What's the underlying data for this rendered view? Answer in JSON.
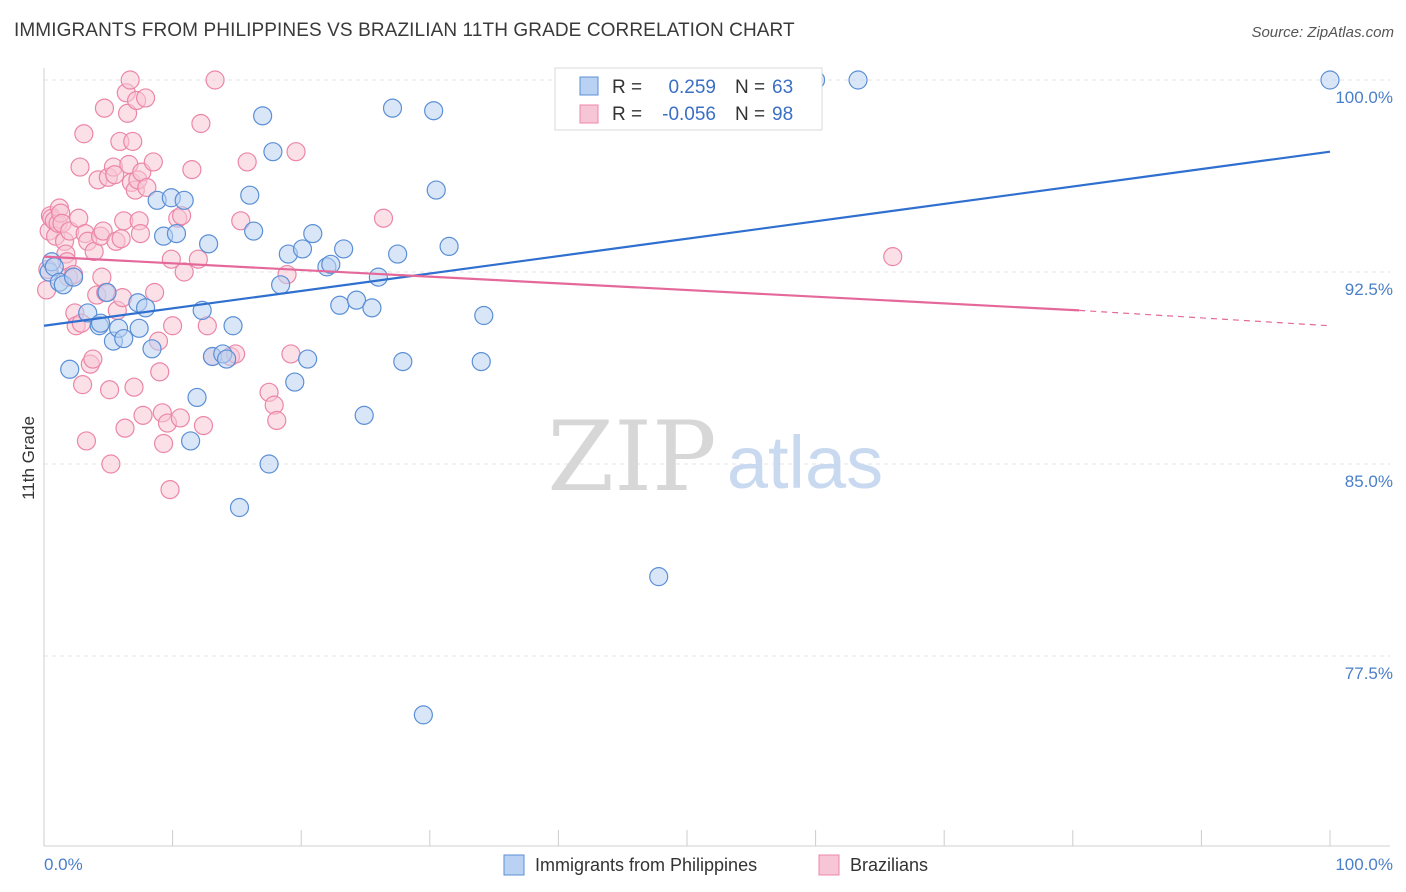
{
  "title": "IMMIGRANTS FROM PHILIPPINES VS BRAZILIAN 11TH GRADE CORRELATION CHART",
  "source": "Source: ZipAtlas.com",
  "watermark": {
    "zip": "ZIP",
    "atlas": "atlas"
  },
  "colors": {
    "blue_fill": "#b9d1f2",
    "blue_stroke": "#5b8fd6",
    "blue_line": "#2f6fcf",
    "pink_fill": "#f7c6d6",
    "pink_stroke": "#ec86a8",
    "pink_line": "#e4699a"
  },
  "legend": {
    "r_label": "R =",
    "n_label": "N =",
    "blue": {
      "r": "0.259",
      "n": "63"
    },
    "pink": {
      "r": "-0.056",
      "n": "98"
    }
  },
  "chart_data": {
    "type": "scatter",
    "xlabel": "",
    "ylabel": "11th Grade",
    "xlim": [
      0,
      100
    ],
    "ylim": [
      71.0,
      101.0
    ],
    "x_tick_labels": [
      "0.0%",
      "100.0%"
    ],
    "y_ticks": [
      77.5,
      85.0,
      92.5,
      100.0
    ],
    "y_tick_labels": [
      "77.5%",
      "85.0%",
      "92.5%",
      "100.0%"
    ],
    "series": [
      {
        "name": "Immigrants from Philippines",
        "color": "blue",
        "trend": {
          "x0": 0,
          "y0": 90.4,
          "x1": 100,
          "y1": 97.2
        },
        "points": [
          [
            0.4,
            92.5
          ],
          [
            0.6,
            92.9
          ],
          [
            0.8,
            92.7
          ],
          [
            1.2,
            92.1
          ],
          [
            1.5,
            92.0
          ],
          [
            2.3,
            92.3
          ],
          [
            2.0,
            88.7
          ],
          [
            3.4,
            90.9
          ],
          [
            4.3,
            90.4
          ],
          [
            4.4,
            90.5
          ],
          [
            4.9,
            91.7
          ],
          [
            5.4,
            89.8
          ],
          [
            5.8,
            90.3
          ],
          [
            6.2,
            89.9
          ],
          [
            7.3,
            91.3
          ],
          [
            7.4,
            90.3
          ],
          [
            7.9,
            91.1
          ],
          [
            8.4,
            89.5
          ],
          [
            8.8,
            95.3
          ],
          [
            9.3,
            93.9
          ],
          [
            9.9,
            95.4
          ],
          [
            10.3,
            94.0
          ],
          [
            10.9,
            95.3
          ],
          [
            11.4,
            85.9
          ],
          [
            11.9,
            87.6
          ],
          [
            12.3,
            91.0
          ],
          [
            12.8,
            93.6
          ],
          [
            13.1,
            89.2
          ],
          [
            13.9,
            89.3
          ],
          [
            14.2,
            89.1
          ],
          [
            14.7,
            90.4
          ],
          [
            15.2,
            83.3
          ],
          [
            16.0,
            95.5
          ],
          [
            16.3,
            94.1
          ],
          [
            17.0,
            98.6
          ],
          [
            17.5,
            85.0
          ],
          [
            17.8,
            97.2
          ],
          [
            18.4,
            92.0
          ],
          [
            19.0,
            93.2
          ],
          [
            19.5,
            88.2
          ],
          [
            20.1,
            93.4
          ],
          [
            20.5,
            89.1
          ],
          [
            20.9,
            94.0
          ],
          [
            22.0,
            92.7
          ],
          [
            22.3,
            92.8
          ],
          [
            23.0,
            91.2
          ],
          [
            23.3,
            93.4
          ],
          [
            24.3,
            91.4
          ],
          [
            24.9,
            86.9
          ],
          [
            25.5,
            91.1
          ],
          [
            26.0,
            92.3
          ],
          [
            27.1,
            98.9
          ],
          [
            27.5,
            93.2
          ],
          [
            27.9,
            89.0
          ],
          [
            30.3,
            98.8
          ],
          [
            30.5,
            95.7
          ],
          [
            31.5,
            93.5
          ],
          [
            34.0,
            89.0
          ],
          [
            34.2,
            90.8
          ],
          [
            29.5,
            75.2
          ],
          [
            47.8,
            80.6
          ],
          [
            60.0,
            100.0
          ],
          [
            63.3,
            100.0
          ],
          [
            100.0,
            100.0
          ]
        ]
      },
      {
        "name": "Brazilians",
        "color": "pink",
        "trend": {
          "x0": 0,
          "y0": 93.1,
          "x1": 80.5,
          "y1": 91.0,
          "dash_x1": 100,
          "dash_y1": 90.4
        },
        "points": [
          [
            0.2,
            91.8
          ],
          [
            0.3,
            92.6
          ],
          [
            0.4,
            94.1
          ],
          [
            0.5,
            94.7
          ],
          [
            0.6,
            94.6
          ],
          [
            0.8,
            94.5
          ],
          [
            0.9,
            93.9
          ],
          [
            1.1,
            94.4
          ],
          [
            1.2,
            95.0
          ],
          [
            1.3,
            94.8
          ],
          [
            1.4,
            94.4
          ],
          [
            1.6,
            93.7
          ],
          [
            1.7,
            93.2
          ],
          [
            1.8,
            92.9
          ],
          [
            1.9,
            92.3
          ],
          [
            2.0,
            94.1
          ],
          [
            2.3,
            92.4
          ],
          [
            2.4,
            90.9
          ],
          [
            2.5,
            90.4
          ],
          [
            2.7,
            94.6
          ],
          [
            2.8,
            96.6
          ],
          [
            2.9,
            90.5
          ],
          [
            3.0,
            88.1
          ],
          [
            3.1,
            97.9
          ],
          [
            3.2,
            94.0
          ],
          [
            3.3,
            85.9
          ],
          [
            3.4,
            93.7
          ],
          [
            3.6,
            88.9
          ],
          [
            3.8,
            89.1
          ],
          [
            3.9,
            93.3
          ],
          [
            4.1,
            91.6
          ],
          [
            4.2,
            96.1
          ],
          [
            4.4,
            93.9
          ],
          [
            4.5,
            92.3
          ],
          [
            4.6,
            94.1
          ],
          [
            4.7,
            98.9
          ],
          [
            4.8,
            91.7
          ],
          [
            5.0,
            96.2
          ],
          [
            5.1,
            87.9
          ],
          [
            5.2,
            85.0
          ],
          [
            5.4,
            96.6
          ],
          [
            5.5,
            96.3
          ],
          [
            5.6,
            93.7
          ],
          [
            5.7,
            91.0
          ],
          [
            5.9,
            97.6
          ],
          [
            6.0,
            93.8
          ],
          [
            6.1,
            91.5
          ],
          [
            6.2,
            94.5
          ],
          [
            6.3,
            86.4
          ],
          [
            6.4,
            99.5
          ],
          [
            6.5,
            98.7
          ],
          [
            6.6,
            96.7
          ],
          [
            6.7,
            100.0
          ],
          [
            6.8,
            96.0
          ],
          [
            6.9,
            97.6
          ],
          [
            7.0,
            88.0
          ],
          [
            7.1,
            95.7
          ],
          [
            7.2,
            99.2
          ],
          [
            7.3,
            96.1
          ],
          [
            7.4,
            94.5
          ],
          [
            7.5,
            94.0
          ],
          [
            7.6,
            96.4
          ],
          [
            7.7,
            86.9
          ],
          [
            7.9,
            99.3
          ],
          [
            8.0,
            95.8
          ],
          [
            8.5,
            96.8
          ],
          [
            8.9,
            89.8
          ],
          [
            9.0,
            88.6
          ],
          [
            9.2,
            87.0
          ],
          [
            9.3,
            85.8
          ],
          [
            9.6,
            86.6
          ],
          [
            9.8,
            84.0
          ],
          [
            9.9,
            93.0
          ],
          [
            10.0,
            90.4
          ],
          [
            10.4,
            94.6
          ],
          [
            10.6,
            86.8
          ],
          [
            10.7,
            94.7
          ],
          [
            10.9,
            92.5
          ],
          [
            11.5,
            96.5
          ],
          [
            12.0,
            93.0
          ],
          [
            12.2,
            98.3
          ],
          [
            12.4,
            86.5
          ],
          [
            12.7,
            90.4
          ],
          [
            13.1,
            89.2
          ],
          [
            13.3,
            100.0
          ],
          [
            14.5,
            89.2
          ],
          [
            14.9,
            89.3
          ],
          [
            15.3,
            94.5
          ],
          [
            15.8,
            96.8
          ],
          [
            17.5,
            87.8
          ],
          [
            17.9,
            87.3
          ],
          [
            18.1,
            86.7
          ],
          [
            18.9,
            92.4
          ],
          [
            19.2,
            89.3
          ],
          [
            19.6,
            97.2
          ],
          [
            26.4,
            94.6
          ],
          [
            66.0,
            93.1
          ],
          [
            8.6,
            91.7
          ]
        ]
      }
    ]
  },
  "bottom_legend": [
    "Immigrants from Philippines",
    "Brazilians"
  ]
}
